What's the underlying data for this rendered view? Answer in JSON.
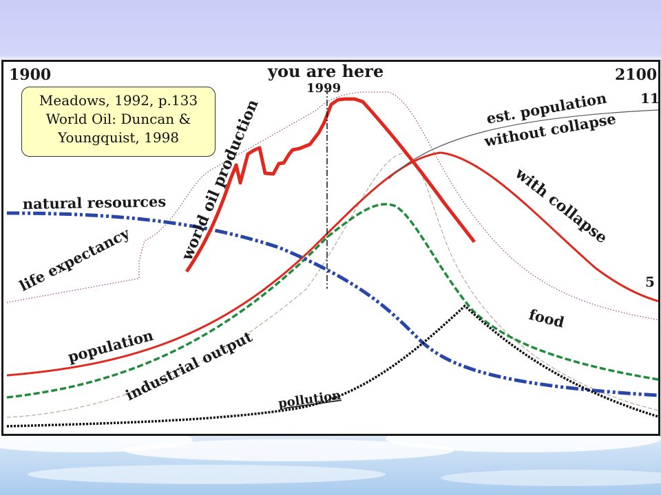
{
  "chart_data": {
    "type": "line",
    "title": "",
    "x_range": [
      1900,
      2100
    ],
    "start_label": "1900",
    "end_label": "2100",
    "marker": {
      "year": 1999,
      "year_label": "1999",
      "label": "you are here"
    },
    "citation": {
      "line1": "Meadows, 1992, p.133",
      "line2": "World Oil: Duncan &",
      "line3": "Youngquist, 1998"
    },
    "value_labels": {
      "high": "11",
      "low": "5"
    },
    "series": [
      {
        "name": "world oil production",
        "color": "#e0281e",
        "style": "solid-thick"
      },
      {
        "name": "natural resources",
        "color": "#2746a8",
        "style": "dash-dot"
      },
      {
        "name": "life expectancy",
        "color": "#a24c8c",
        "style": "dotted"
      },
      {
        "name": "population",
        "color": "#e0281e",
        "style": "solid"
      },
      {
        "name": "industrial output",
        "color": "#b8a898",
        "style": "dashed-thin"
      },
      {
        "name": "food",
        "color": "#1e8c3a",
        "style": "dashed"
      },
      {
        "name": "pollution",
        "color": "#111111",
        "style": "dotted-thick"
      },
      {
        "name": "est. population",
        "name2": "without collapse",
        "color": "#555555",
        "style": "thin"
      },
      {
        "name": "with collapse",
        "color": "#e0281e",
        "style": "solid"
      }
    ]
  }
}
